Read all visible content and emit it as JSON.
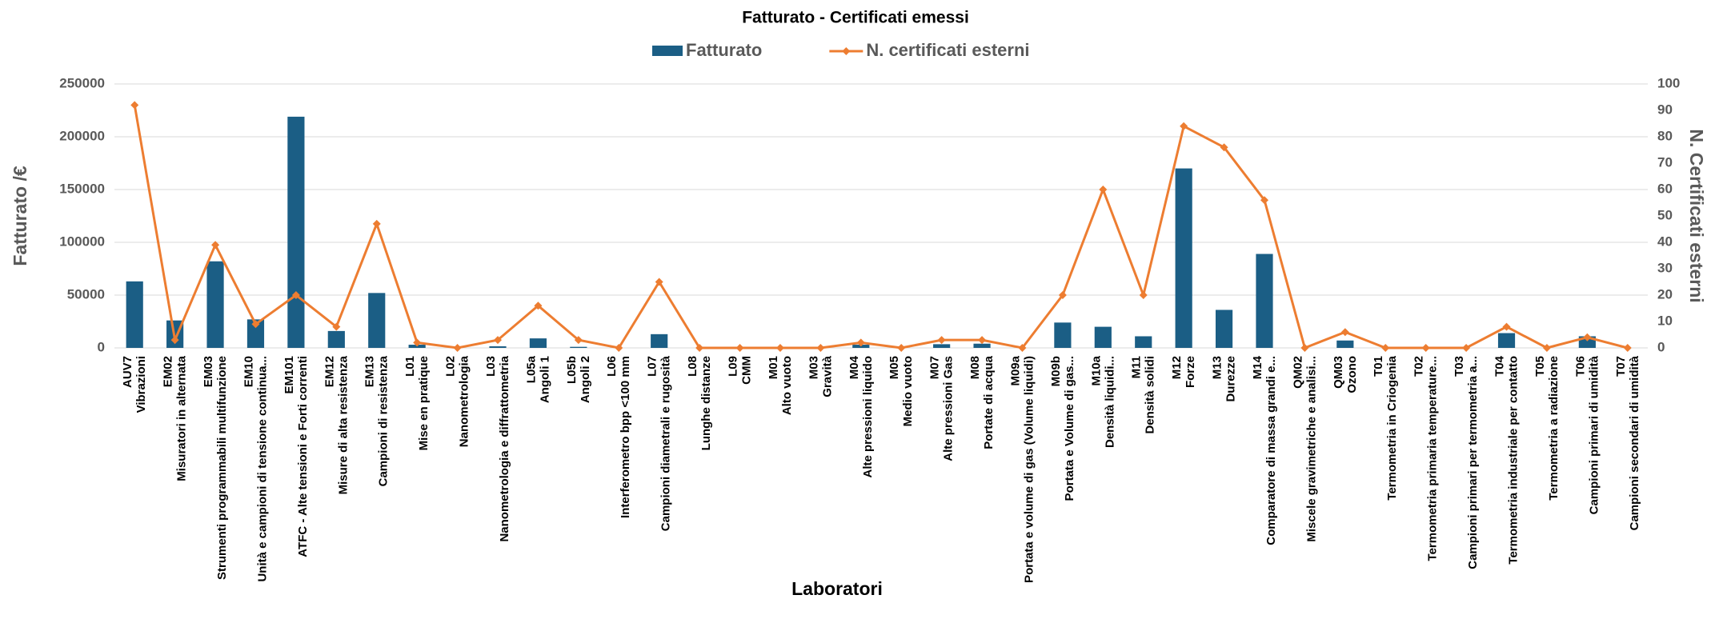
{
  "chart_data": {
    "type": "bar_line",
    "title": "Fatturato - Certificati emessi",
    "x_label": "Laboratori",
    "y_label": "Fatturato /€",
    "y2_label": "N. Certificati esterni",
    "categories": [
      [
        "AUV7",
        "Vibrazioni"
      ],
      [
        "EM02",
        "Misuratori in alternata"
      ],
      [
        "EM03",
        "Strumenti programmabili multifunzione"
      ],
      [
        "EM10",
        "Unità e campioni di tensione continua..."
      ],
      [
        "EM101",
        "ATFC - Alte tensioni e Forti correnti"
      ],
      [
        "EM12",
        "Misure di alta resistenza"
      ],
      [
        "EM13",
        "Campioni di resistenza"
      ],
      [
        "L01",
        "Mise en pratique"
      ],
      [
        "L02",
        "Nanometrologia"
      ],
      [
        "L03",
        "Nanometrologia e diffrattometria"
      ],
      [
        "L05a",
        "Angoli 1"
      ],
      [
        "L05b",
        "Angoli 2"
      ],
      [
        "L06",
        "Interferometro bpp <100 mm"
      ],
      [
        "L07",
        "Campioni diametrali e rugosità"
      ],
      [
        "L08",
        "Lunghe distanze"
      ],
      [
        "L09",
        "CMM"
      ],
      [
        "M01",
        "Alto vuoto"
      ],
      [
        "M03",
        "Gravità"
      ],
      [
        "M04",
        "Alte pressioni liquido"
      ],
      [
        "M05",
        "Medio vuoto"
      ],
      [
        "M07",
        "Alte pressioni Gas"
      ],
      [
        "M08",
        "Portate di acqua"
      ],
      [
        "M09a",
        "Portata e volume di gas (Volume liquidi)"
      ],
      [
        "M09b",
        "Portata e Volume di gas..."
      ],
      [
        "M10a",
        "Densità liquidi..."
      ],
      [
        "M11",
        "Densità solidi"
      ],
      [
        "M12",
        "Forze"
      ],
      [
        "M13",
        "Durezze"
      ],
      [
        "M14",
        "Comparatore di massa grandi e..."
      ],
      [
        "QM02",
        "Miscele gravimetriche e analisi..."
      ],
      [
        "QM03",
        "Ozono"
      ],
      [
        "T01",
        "Termometria in Criogenia"
      ],
      [
        "T02",
        "Termometria primaria temperature..."
      ],
      [
        "T03",
        "Campioni primari per termometria a..."
      ],
      [
        "T04",
        "Termometria industriale per contatto"
      ],
      [
        "T05",
        "Termometria a radiazione"
      ],
      [
        "T06",
        "Campioni primari di umidità"
      ],
      [
        "T07",
        "Campioni secondari di umidità"
      ]
    ],
    "series": [
      {
        "name": "Fatturato",
        "type": "bar",
        "color": "#1b5e85",
        "values": [
          63000,
          26000,
          82000,
          27000,
          219000,
          16000,
          52000,
          3000,
          0,
          1500,
          9000,
          1000,
          0,
          13000,
          0,
          0,
          0,
          0,
          3000,
          0,
          3500,
          4000,
          0,
          24000,
          20000,
          11000,
          170000,
          36000,
          89000,
          0,
          7000,
          0,
          0,
          0,
          14000,
          0,
          11000,
          0
        ]
      },
      {
        "name": "N. certificati esterni",
        "type": "line",
        "axis": "y2",
        "color": "#ed7d31",
        "values": [
          92,
          3,
          39,
          9,
          20,
          8,
          47,
          2,
          0,
          3,
          16,
          3,
          0,
          25,
          0,
          0,
          0,
          0,
          2,
          0,
          3,
          3,
          0,
          20,
          60,
          20,
          84,
          76,
          56,
          0,
          6,
          0,
          0,
          0,
          8,
          0,
          4,
          0
        ]
      }
    ],
    "ylim": [
      0,
      250000
    ],
    "yticks": [
      0,
      50000,
      100000,
      150000,
      200000,
      250000
    ],
    "y2lim": [
      0,
      100
    ],
    "y2ticks": [
      0,
      10,
      20,
      30,
      40,
      50,
      60,
      70,
      80,
      90,
      100
    ],
    "grid": true,
    "legend": "top"
  }
}
